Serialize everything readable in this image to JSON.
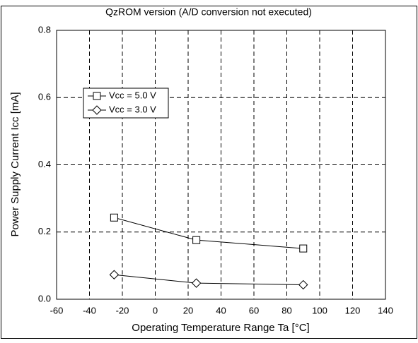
{
  "chart_data": {
    "type": "line",
    "title": "QzROM version (A/D conversion not executed)",
    "x_label": "Operating Temperature Range Ta [°C]",
    "y_label": "Power Supply Current Icc [mA]",
    "xlim": [
      -60,
      140
    ],
    "xticks": [
      -60,
      -40,
      -20,
      0,
      20,
      40,
      60,
      80,
      100,
      120,
      140
    ],
    "ylim": [
      0,
      0.8
    ],
    "yticks": [
      {
        "value": 0,
        "label": "0.0"
      },
      0.2,
      0.4,
      0.6,
      0.8
    ],
    "grid": true,
    "legend": "upper left",
    "series": [
      {
        "name": "Vcc = 5.0 V",
        "color": "#000000",
        "marker": "square",
        "x": [
          -25,
          25,
          90
        ],
        "values": [
          0.243,
          0.176,
          0.151
        ]
      },
      {
        "name": "Vcc = 3.0 V",
        "color": "#000000",
        "marker": "diamond",
        "x": [
          -25,
          25,
          90
        ],
        "values": [
          0.073,
          0.048,
          0.043
        ]
      }
    ]
  }
}
